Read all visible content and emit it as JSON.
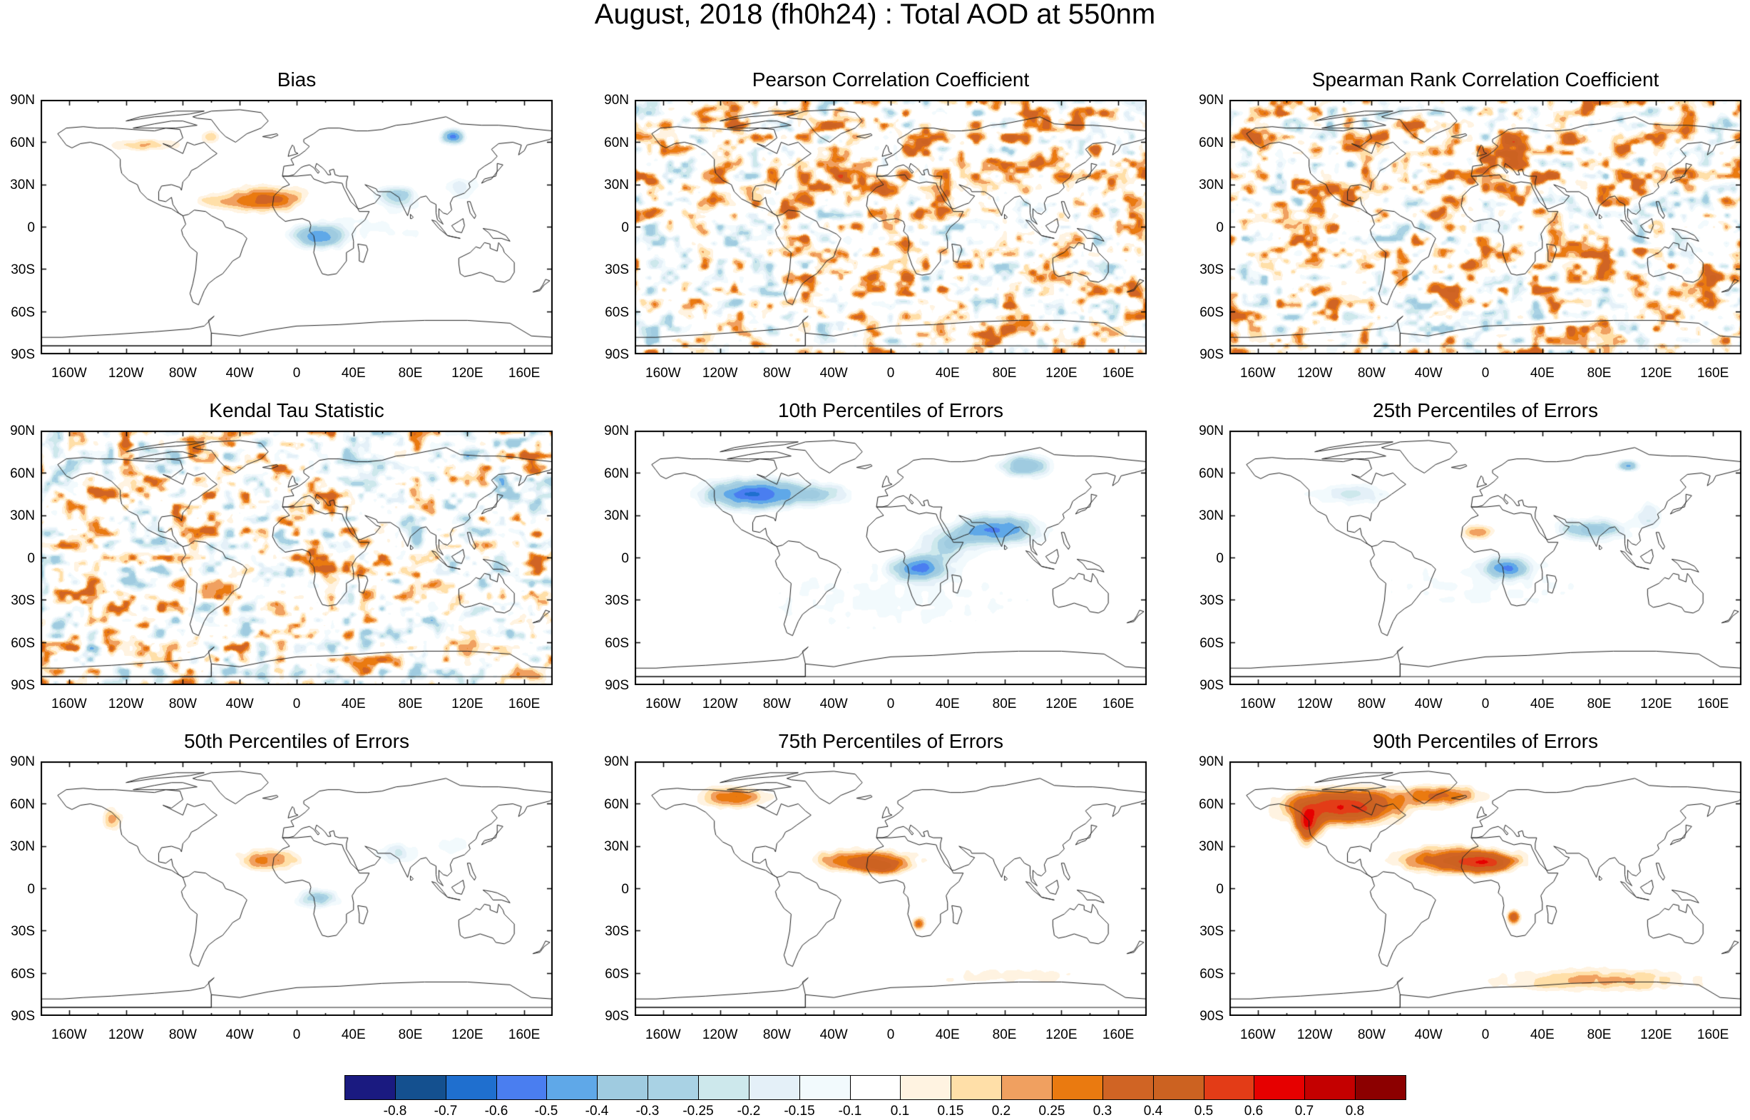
{
  "title": "August, 2018 (fh0h24) : Total AOD at 550nm",
  "lat_labels": [
    "90N",
    "60N",
    "30N",
    "0",
    "30S",
    "60S",
    "90S"
  ],
  "lon_labels": [
    "160W",
    "120W",
    "80W",
    "40W",
    "0",
    "40E",
    "80E",
    "120E",
    "160E"
  ],
  "panels": [
    {
      "title": "Bias",
      "field": "bias"
    },
    {
      "title": "Pearson Correlation Coefficient",
      "field": "pearson"
    },
    {
      "title": "Spearman Rank Correlation Coefficient",
      "field": "spearman"
    },
    {
      "title": "Kendal Tau Statistic",
      "field": "kendall"
    },
    {
      "title": "10th Percentiles of Errors",
      "field": "p10"
    },
    {
      "title": "25th Percentiles of Errors",
      "field": "p25"
    },
    {
      "title": "50th Percentiles of Errors",
      "field": "p50"
    },
    {
      "title": "75th Percentiles of Errors",
      "field": "p75"
    },
    {
      "title": "90th Percentiles of Errors",
      "field": "p90"
    }
  ],
  "colorbar": {
    "labels": [
      "-0.8",
      "-0.7",
      "-0.6",
      "-0.5",
      "-0.4",
      "-0.3",
      "-0.25",
      "-0.2",
      "-0.15",
      "-0.1",
      "0.1",
      "0.15",
      "0.2",
      "0.25",
      "0.3",
      "0.4",
      "0.5",
      "0.6",
      "0.7",
      "0.8"
    ],
    "colors": [
      "#1a1a80",
      "#14508f",
      "#1f6fcf",
      "#4a7ef0",
      "#5fa8e8",
      "#9fcbe0",
      "#a9d2e4",
      "#cde8ec",
      "#e4f0f8",
      "#f2fafd",
      "#ffffff",
      "#fff3e1",
      "#ffdfa8",
      "#f0a060",
      "#ea7a10",
      "#d06424",
      "#cc6221",
      "#e33c17",
      "#e60000",
      "#c40000",
      "#8c0000"
    ]
  }
}
